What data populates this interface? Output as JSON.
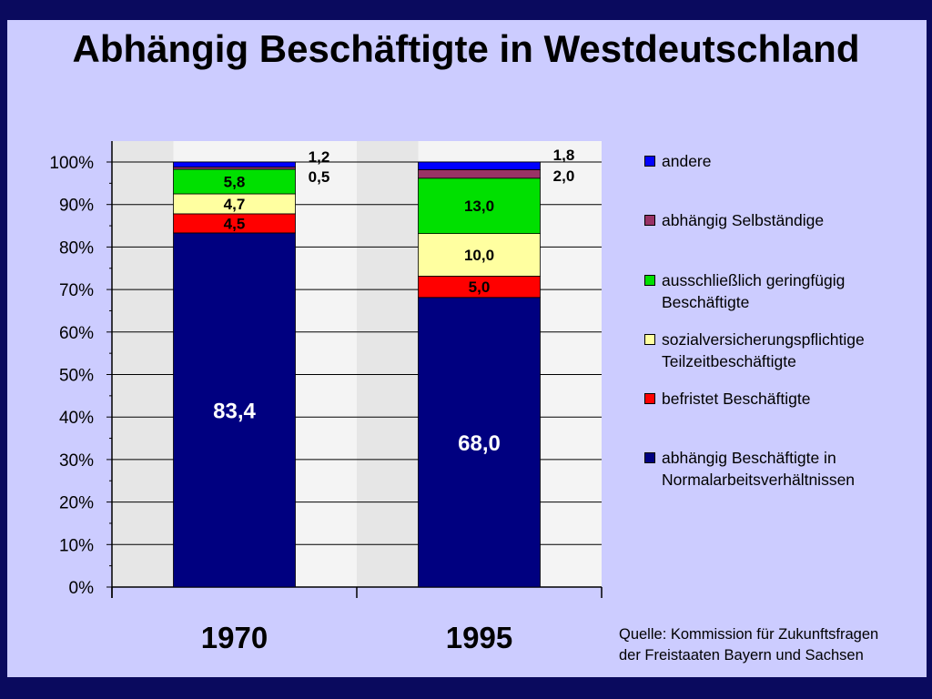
{
  "title": "Abhängig Beschäftigte in Westdeutschland",
  "source_note": "Quelle: Kommission für Zukunftsfragen\nder Freistaaten Bayern und Sachsen",
  "colors": {
    "background_frame": "#0a0a5e",
    "slide": "#ccccff",
    "plot_area": "#e8e8e8"
  },
  "chart_data": {
    "type": "bar",
    "stacked": true,
    "normalized": true,
    "categories": [
      "1970",
      "1995"
    ],
    "ylim": [
      0,
      100
    ],
    "yticks": [
      "0%",
      "10%",
      "20%",
      "30%",
      "40%",
      "50%",
      "60%",
      "70%",
      "80%",
      "90%",
      "100%"
    ],
    "grid": true,
    "legend_position": "right",
    "series": [
      {
        "name": "abhängig Beschäftigte in\nNormalarbeitsverhältnissen",
        "color": "#000080",
        "values": [
          83.4,
          68.0
        ],
        "labels": [
          "83,4",
          "68,0"
        ]
      },
      {
        "name": "befristet Beschäftigte",
        "color": "#ff0000",
        "values": [
          4.5,
          5.0
        ],
        "labels": [
          "4,5",
          "5,0"
        ]
      },
      {
        "name": "sozialversicherungspflichtige\nTeilzeitbeschäftigte",
        "color": "#ffffa0",
        "values": [
          4.7,
          10.0
        ],
        "labels": [
          "4,7",
          "10,0"
        ]
      },
      {
        "name": "ausschließlich geringfügig\nBeschäftigte",
        "color": "#00e000",
        "values": [
          5.8,
          13.0
        ],
        "labels": [
          "5,8",
          "13,0"
        ]
      },
      {
        "name": "abhängig Selbständige",
        "color": "#993366",
        "values": [
          0.5,
          2.0
        ],
        "labels": [
          "0,5",
          "2,0"
        ]
      },
      {
        "name": "andere",
        "color": "#0000ff",
        "values": [
          1.2,
          1.8
        ],
        "labels": [
          "1,2",
          "1,8"
        ]
      }
    ]
  }
}
